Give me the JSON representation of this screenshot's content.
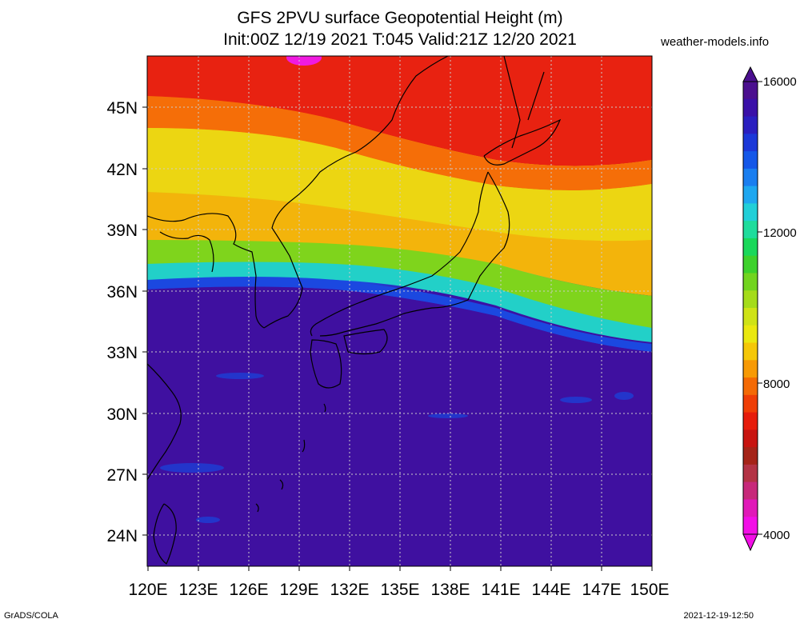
{
  "title_line1": "GFS 2PVU surface Geopotential Height (m)",
  "title_line2": "Init:00Z 12/19 2021 T:045 Valid:21Z 12/20 2021",
  "brand": "weather-models.info",
  "footer_left": "GrADS/COLA",
  "footer_right": "2021-12-19-12:50",
  "map": {
    "lat_labels": [
      "45N",
      "42N",
      "39N",
      "36N",
      "33N",
      "30N",
      "27N",
      "24N"
    ],
    "lon_labels": [
      "120E",
      "123E",
      "126E",
      "129E",
      "132E",
      "135E",
      "138E",
      "141E",
      "144E",
      "147E",
      "150E"
    ]
  },
  "colorbar": {
    "labels": [
      "16000",
      "12000",
      "8000",
      "4000"
    ],
    "colors": [
      "#4b0f8f",
      "#3a10a8",
      "#2a1fc0",
      "#1b38d8",
      "#1457e8",
      "#1a7ef0",
      "#1ea7f0",
      "#21cfd8",
      "#1fdc9c",
      "#1ad85a",
      "#3dd12c",
      "#72d41f",
      "#a5dc1a",
      "#cfe316",
      "#eae80f",
      "#f5c707",
      "#f79a05",
      "#f46a05",
      "#ef3e06",
      "#e61c0b",
      "#c81410",
      "#a52418",
      "#b33345",
      "#c7297a",
      "#e019b8",
      "#f20fe6"
    ]
  }
}
